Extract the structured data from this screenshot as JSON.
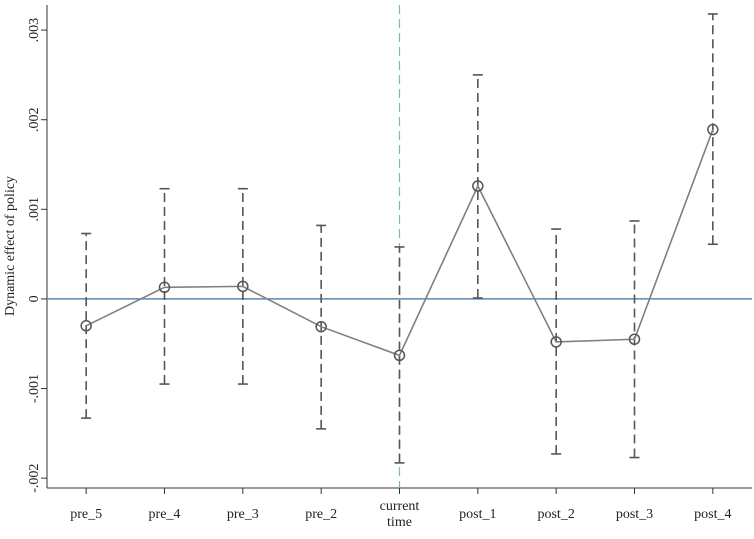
{
  "chart_data": {
    "type": "errorbar-line",
    "y_label": "Dynamic effect of policy",
    "categories": [
      "pre_5",
      "pre_4",
      "pre_3",
      "pre_2",
      "current time",
      "post_1",
      "post_2",
      "post_3",
      "post_4"
    ],
    "series": [
      {
        "color": "#808080",
        "values": [
          -0.0003,
          0.00013,
          0.00014,
          -0.00031,
          -0.00063,
          0.00126,
          -0.00048,
          -0.00045,
          0.00189
        ],
        "lower": [
          -0.00133,
          -0.00095,
          -0.00095,
          -0.00145,
          -0.00183,
          1e-05,
          -0.00173,
          -0.00177,
          0.00061
        ],
        "upper": [
          0.00073,
          0.00123,
          0.00123,
          0.00082,
          0.00058,
          0.0025,
          0.00078,
          0.00087,
          0.00318
        ]
      }
    ],
    "ylim": [
      -0.00211,
      0.00328
    ],
    "yticks": [
      {
        "value": -0.002,
        "label": "-.002"
      },
      {
        "value": -0.001,
        "label": "-.001"
      },
      0,
      {
        "value": 0.001,
        "label": ".001"
      },
      {
        "value": 0.002,
        "label": ".002"
      },
      {
        "value": 0.003,
        "label": ".003"
      }
    ],
    "reference_line_y": 0,
    "reference_line_y_color": "#5b86b0",
    "reference_line_x": "current time",
    "reference_line_x_color": "#7fb8b0"
  }
}
